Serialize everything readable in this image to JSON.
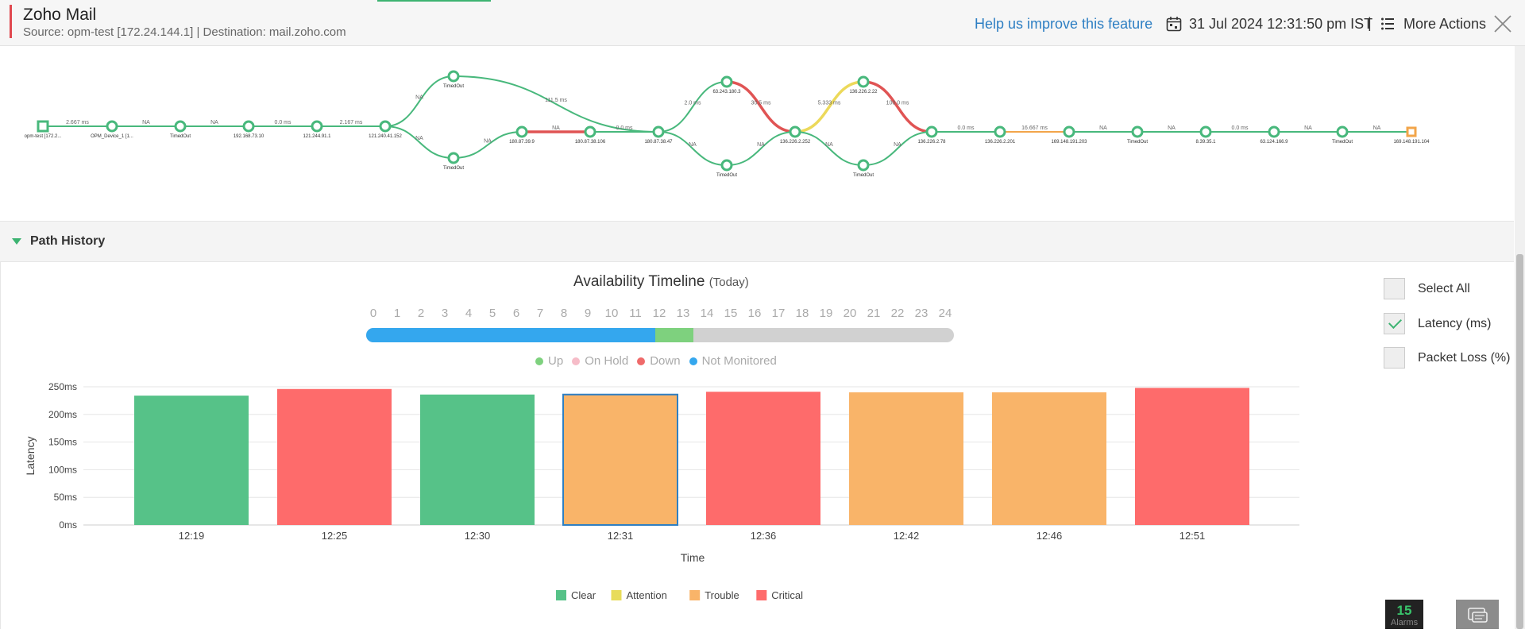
{
  "header": {
    "title": "Zoho Mail",
    "subtitle": "Source: opm-test [172.24.144.1]  | Destination: mail.zoho.com",
    "help_link": "Help us improve this feature",
    "datetime": "31 Jul 2024 12:31:50 pm IST",
    "separator": "|",
    "more_actions": "More Actions"
  },
  "topology": {
    "source_label": "opm-test [172.2...",
    "nodes": [
      {
        "label": "OPM_Device_1 [1...",
        "status": "clear"
      },
      {
        "label": "TimedOut",
        "status": "clear"
      },
      {
        "label": "192.168.73.10",
        "status": "clear"
      },
      {
        "label": "121.244.91.1",
        "status": "clear"
      },
      {
        "label": "121.240.41.152",
        "status": "clear"
      },
      {
        "label": "TimedOut",
        "status": "clear"
      },
      {
        "label": "TimedOut",
        "status": "clear"
      },
      {
        "label": "180.87.39.9",
        "status": "clear"
      },
      {
        "label": "180.87.38.106",
        "status": "clear"
      },
      {
        "label": "180.87.38.47",
        "status": "clear"
      },
      {
        "label": "63.243.180.3",
        "status": "clear"
      },
      {
        "label": "TimedOut",
        "status": "clear"
      },
      {
        "label": "136.226.2.252",
        "status": "clear"
      },
      {
        "label": "136.226.2.22",
        "status": "clear"
      },
      {
        "label": "TimedOut",
        "status": "clear"
      },
      {
        "label": "136.226.2.78",
        "status": "clear"
      },
      {
        "label": "136.226.2.201",
        "status": "clear"
      },
      {
        "label": "169.148.191.203",
        "status": "clear"
      },
      {
        "label": "TimedOut",
        "status": "clear"
      },
      {
        "label": "8.39.35.1",
        "status": "clear"
      },
      {
        "label": "63.124.166.9",
        "status": "clear"
      },
      {
        "label": "TimedOut",
        "status": "clear"
      },
      {
        "label": "169.148.191.104",
        "status": "trouble"
      }
    ],
    "link_labels": [
      "2.667 ms",
      "NA",
      "NA",
      "0.0 ms",
      "2.167 ms",
      "NA",
      "NA",
      "NA",
      "NA",
      "111.5 ms",
      "0.0 ms",
      "2.0 ms",
      "NA",
      "30.5 ms",
      "NA",
      "5.333 ms",
      "NA",
      "100.0 ms",
      "NA",
      "0.0 ms",
      "16.667 ms",
      "NA",
      "NA",
      "0.0 ms",
      "NA",
      "NA"
    ]
  },
  "path_history": {
    "label": "Path History"
  },
  "timeline": {
    "title": "Availability Timeline",
    "period": "(Today)",
    "hours": [
      "0",
      "1",
      "2",
      "3",
      "4",
      "5",
      "6",
      "7",
      "8",
      "9",
      "10",
      "11",
      "12",
      "13",
      "14",
      "15",
      "16",
      "17",
      "18",
      "19",
      "20",
      "21",
      "22",
      "23",
      "24"
    ],
    "segments": [
      {
        "status": "Not Monitored",
        "start_hour": 0,
        "end_hour": 11.8,
        "color": "#34a7ee"
      },
      {
        "status": "Up",
        "start_hour": 11.8,
        "end_hour": 13.35,
        "color": "#7ed17e"
      }
    ],
    "legend": [
      {
        "label": "Up",
        "color": "#7ed17e"
      },
      {
        "label": "On Hold",
        "color": "#f6bcc8"
      },
      {
        "label": "Down",
        "color": "#ef6a6a"
      },
      {
        "label": "Not Monitored",
        "color": "#34a7ee"
      }
    ]
  },
  "chart_data": {
    "type": "bar",
    "title": "",
    "xlabel": "Time",
    "ylabel": "Latency",
    "ylim": [
      0,
      250
    ],
    "yticks": [
      "0ms",
      "50ms",
      "100ms",
      "150ms",
      "200ms",
      "250ms"
    ],
    "categories": [
      "12:19",
      "12:25",
      "12:30",
      "12:31",
      "12:36",
      "12:42",
      "12:46",
      "12:51"
    ],
    "values": [
      234,
      246,
      236,
      236,
      241,
      240,
      240,
      248
    ],
    "statuses": [
      "Clear",
      "Critical",
      "Clear",
      "Trouble",
      "Critical",
      "Trouble",
      "Trouble",
      "Critical"
    ],
    "selected_index": 3,
    "legend": [
      {
        "label": "Clear",
        "color": "#56c288"
      },
      {
        "label": "Attention",
        "color": "#e8dc5a"
      },
      {
        "label": "Trouble",
        "color": "#f9b469"
      },
      {
        "label": "Critical",
        "color": "#fe6b6b"
      }
    ]
  },
  "options": [
    {
      "label": "Select All",
      "checked": false
    },
    {
      "label": "Latency (ms)",
      "checked": true
    },
    {
      "label": "Packet Loss (%)",
      "checked": false
    }
  ],
  "alarms": {
    "count": "15",
    "label": "Alarms"
  }
}
